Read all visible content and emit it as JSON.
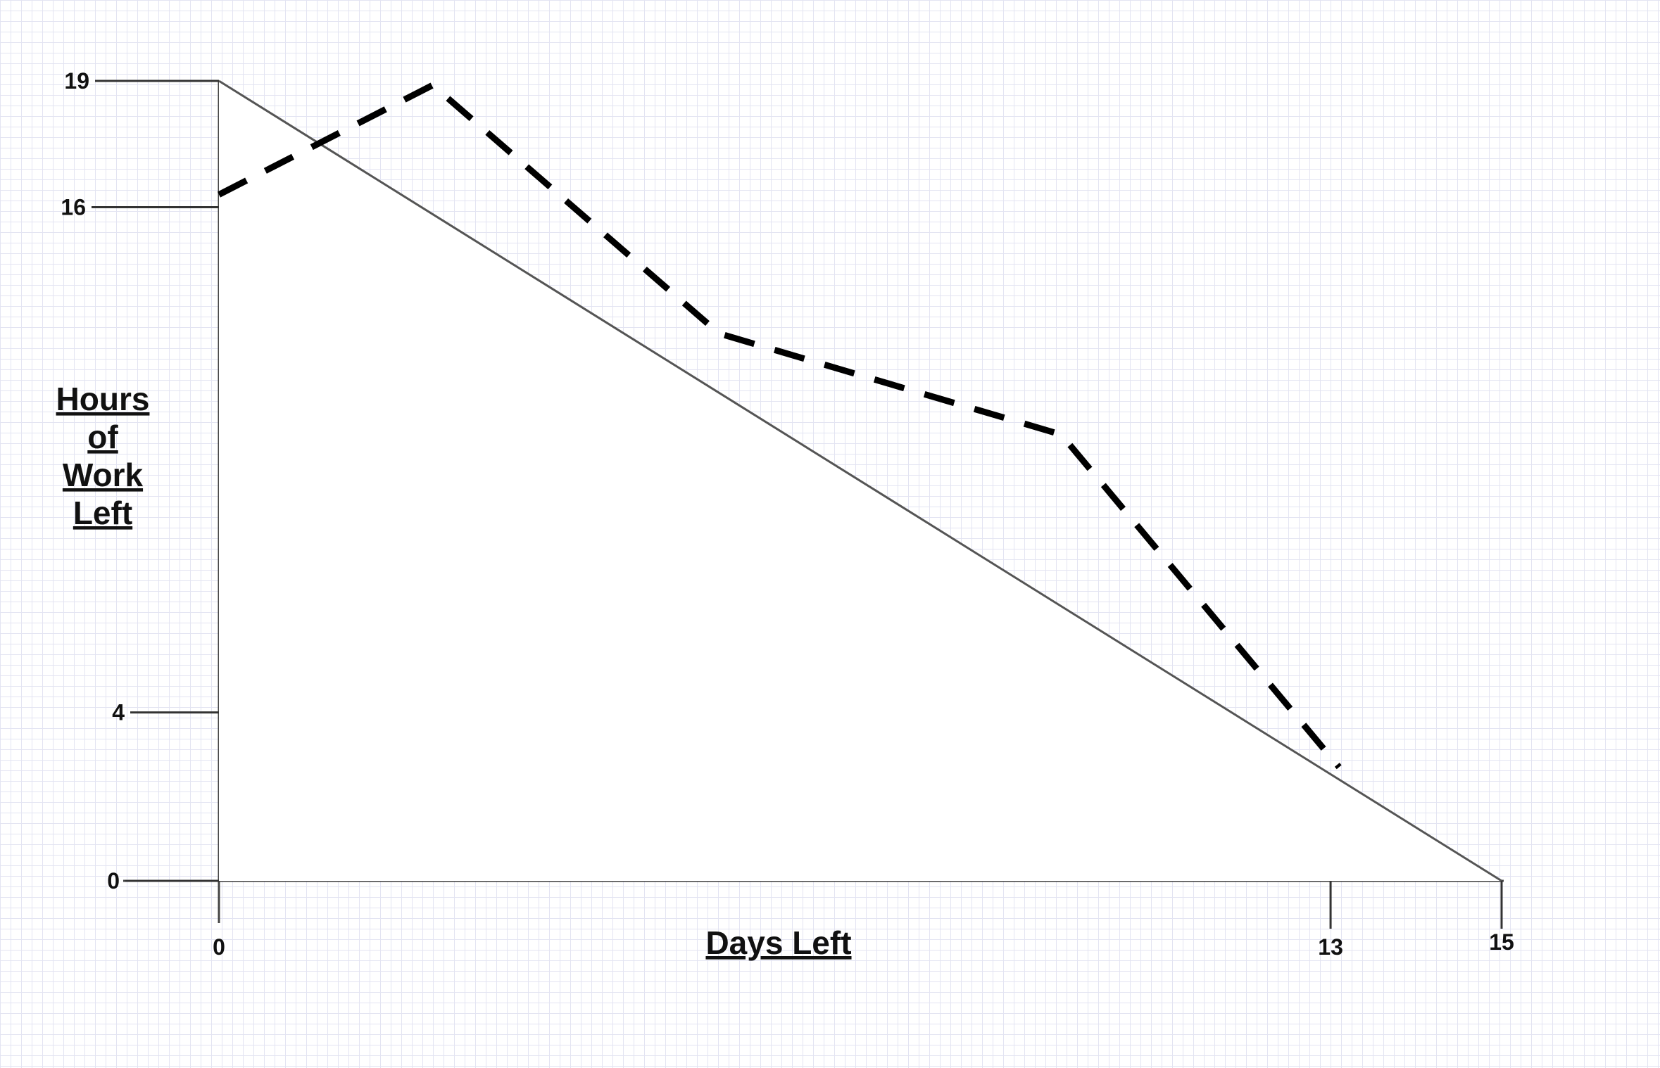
{
  "chart_data": {
    "type": "line",
    "title": "",
    "xlabel": "Days Left",
    "ylabel": [
      "Hours",
      "of",
      "Work",
      "Left"
    ],
    "xlim": [
      0,
      15
    ],
    "ylim": [
      0,
      19
    ],
    "grid": true,
    "legend": "none",
    "x_ticks": [
      {
        "value": 0,
        "label": "0"
      },
      {
        "value": 13,
        "label": "13"
      },
      {
        "value": 15,
        "label": "15"
      }
    ],
    "y_ticks": [
      {
        "value": 0,
        "label": "0"
      },
      {
        "value": 4,
        "label": "4"
      },
      {
        "value": 16,
        "label": "16"
      },
      {
        "value": 19,
        "label": "19"
      }
    ],
    "series": [
      {
        "style": "solid",
        "color": "#555555",
        "x": [
          0,
          15
        ],
        "y": [
          19,
          0
        ]
      },
      {
        "style": "dashed",
        "color": "#000000",
        "x": [
          0,
          2.5,
          5.85,
          9.85,
          13.1
        ],
        "y": [
          16.3,
          18.9,
          13,
          10.6,
          2.7
        ]
      }
    ]
  }
}
